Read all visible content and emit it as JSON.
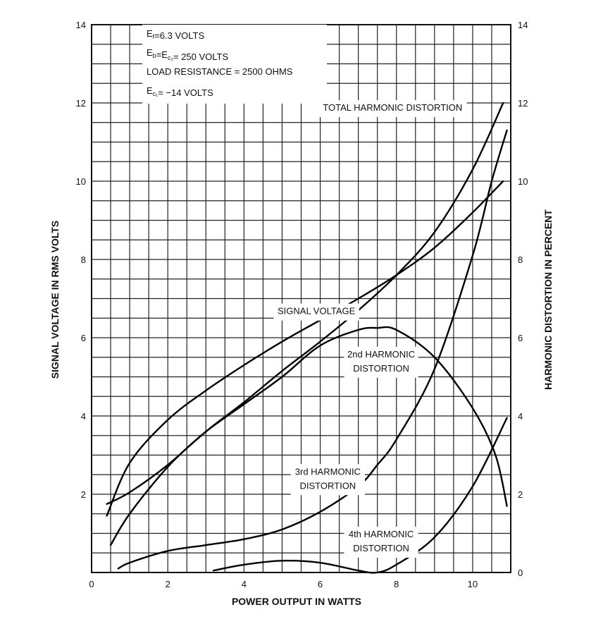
{
  "chart_data": {
    "type": "line",
    "title": "",
    "xlabel": "POWER OUTPUT IN WATTS",
    "ylabel_left": "SIGNAL VOLTAGE IN RMS VOLTS",
    "ylabel_right": "HARMONIC DISTORTION IN PERCENT",
    "xlim": [
      0,
      11
    ],
    "ylim": [
      0,
      14
    ],
    "x_ticks": [
      0,
      2,
      4,
      6,
      8,
      10
    ],
    "y_ticks": [
      2,
      4,
      6,
      8,
      10,
      12,
      14
    ],
    "y_ticks_right": [
      0,
      2,
      4,
      6,
      8,
      10,
      12,
      14
    ],
    "grid": true,
    "conditions": [
      {
        "main": "E",
        "sub": "f",
        "rest": "=6.3 VOLTS"
      },
      {
        "main": "E",
        "sub": "b",
        "rest": "=E",
        "sub2": "c₂",
        "rest2": "= 250 VOLTS"
      },
      {
        "main": "LOAD RESISTANCE = 2500 OHMS"
      },
      {
        "main": "E",
        "sub": "c₁",
        "rest": "= −14 VOLTS"
      }
    ],
    "series": [
      {
        "name": "SIGNAL VOLTAGE",
        "axis": "left",
        "x": [
          0.4,
          1,
          2,
          3,
          4,
          5,
          6,
          7,
          8,
          9,
          10,
          10.8
        ],
        "y": [
          1.45,
          2.8,
          3.9,
          4.65,
          5.3,
          5.9,
          6.45,
          7.0,
          7.6,
          8.3,
          9.2,
          10.0
        ],
        "label_lines": [
          "SIGNAL VOLTAGE"
        ],
        "label_at": [
          5.9,
          6.6
        ]
      },
      {
        "name": "TOTAL HARMONIC DISTORTION",
        "axis": "right",
        "x": [
          0.5,
          1,
          2,
          3,
          4,
          5,
          6,
          7,
          8,
          9,
          10,
          10.8
        ],
        "y": [
          0.7,
          1.5,
          2.7,
          3.6,
          4.35,
          5.15,
          5.9,
          6.7,
          7.6,
          8.7,
          10.3,
          12.0
        ],
        "label_lines": [
          "TOTAL HARMONIC DISTORTION"
        ],
        "label_at": [
          7.9,
          11.8
        ]
      },
      {
        "name": "2nd HARMONIC DISTORTION",
        "axis": "right",
        "x": [
          0.4,
          1,
          2,
          3,
          4,
          5,
          6,
          7,
          7.5,
          8,
          9,
          10,
          10.6,
          10.9
        ],
        "y": [
          1.75,
          2.05,
          2.75,
          3.6,
          4.3,
          5.0,
          5.8,
          6.2,
          6.25,
          6.2,
          5.5,
          4.2,
          3.0,
          1.7
        ],
        "label_lines": [
          "2nd HARMONIC",
          "DISTORTION"
        ],
        "label_at": [
          7.6,
          5.5
        ]
      },
      {
        "name": "3rd HARMONIC DISTORTION",
        "axis": "right",
        "x": [
          0.7,
          1,
          2,
          3,
          4,
          5,
          6,
          7,
          7.5,
          8,
          9,
          10,
          10.5,
          10.9
        ],
        "y": [
          0.1,
          0.25,
          0.55,
          0.7,
          0.85,
          1.1,
          1.55,
          2.2,
          2.75,
          3.4,
          5.2,
          8.1,
          10.0,
          11.3
        ],
        "label_lines": [
          "3rd HARMONIC",
          "DISTORTION"
        ],
        "label_at": [
          6.2,
          2.5
        ]
      },
      {
        "name": "4th HARMONIC DISTORTION",
        "axis": "right",
        "x": [
          3.2,
          4,
          5,
          6,
          7,
          7.5,
          8,
          9,
          10,
          10.9
        ],
        "y": [
          0.05,
          0.2,
          0.3,
          0.25,
          0.05,
          0.0,
          0.2,
          0.9,
          2.2,
          3.95
        ],
        "label_lines": [
          "4th HARMONIC",
          "DISTORTION"
        ],
        "label_at": [
          7.6,
          0.9
        ]
      }
    ]
  }
}
